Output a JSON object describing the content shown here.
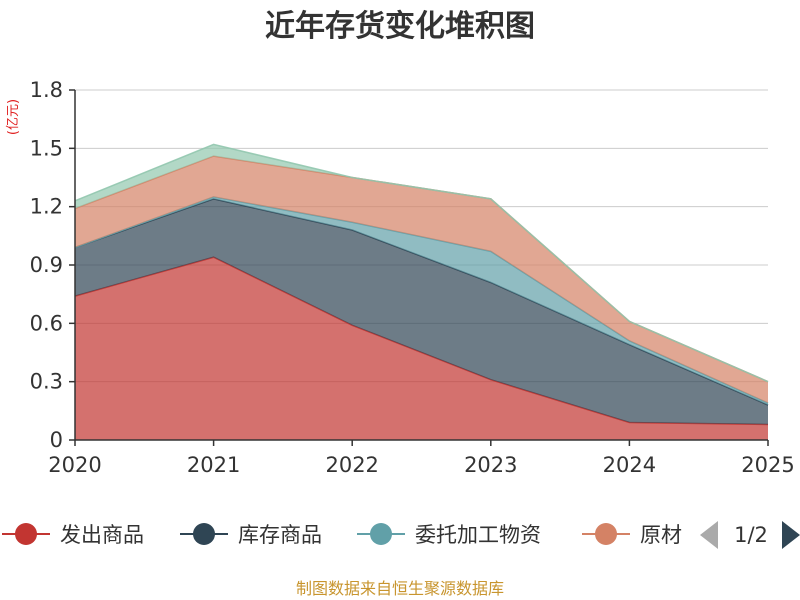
{
  "chart_data": {
    "type": "area",
    "stacked": true,
    "title": "近年存货变化堆积图",
    "ylabel": "(亿元)",
    "xlabel": "",
    "categories": [
      "2020",
      "2021",
      "2022",
      "2023",
      "2024",
      "2025"
    ],
    "ylim": [
      0,
      1.8
    ],
    "yticks": [
      "0",
      "0.3",
      "0.6",
      "0.9",
      "1.2",
      "1.5",
      "1.8"
    ],
    "ytick_values": [
      0,
      0.3,
      0.6,
      0.9,
      1.2,
      1.5,
      1.8
    ],
    "grid": true,
    "series": [
      {
        "name": "发出商品",
        "color": "#c23531",
        "values": [
          0.74,
          0.94,
          0.59,
          0.31,
          0.09,
          0.08
        ]
      },
      {
        "name": "库存商品",
        "color": "#2f4554",
        "values": [
          0.25,
          0.3,
          0.49,
          0.5,
          0.4,
          0.1
        ]
      },
      {
        "name": "委托加工物资",
        "color": "#61a0a8",
        "values": [
          0.0,
          0.01,
          0.04,
          0.16,
          0.02,
          0.01
        ]
      },
      {
        "name": "原材料",
        "color": "#d48265",
        "values": [
          0.2,
          0.21,
          0.23,
          0.27,
          0.1,
          0.11
        ]
      },
      {
        "name": "",
        "color": "#91c7ae",
        "values": [
          0.04,
          0.06,
          0.0,
          0.0,
          0.0,
          0.0
        ]
      }
    ],
    "legend": {
      "position": "bottom",
      "visible_labels": [
        "发出商品",
        "库存商品",
        "委托加工物资",
        "原材"
      ],
      "page": "1/2"
    },
    "footer": "制图数据来自恒生聚源数据库"
  }
}
